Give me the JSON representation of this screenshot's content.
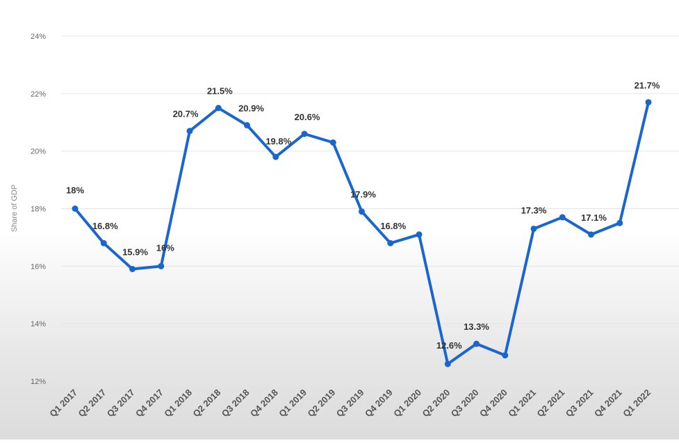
{
  "chart_data": {
    "type": "line",
    "ylabel": "Share of GDP",
    "ylim": [
      12,
      24
    ],
    "yticks": [
      12,
      14,
      16,
      18,
      20,
      22,
      24
    ],
    "ytick_labels": [
      "12%",
      "14%",
      "16%",
      "18%",
      "20%",
      "22%",
      "24%"
    ],
    "grid": true,
    "categories": [
      "Q1 2017",
      "Q2 2017",
      "Q3 2017",
      "Q4 2017",
      "Q1 2018",
      "Q2 2018",
      "Q3 2018",
      "Q4 2018",
      "Q1 2019",
      "Q2 2019",
      "Q3 2019",
      "Q4 2019",
      "Q1 2020",
      "Q2 2020",
      "Q3 2020",
      "Q4 2020",
      "Q1 2021",
      "Q2 2021",
      "Q3 2021",
      "Q4 2021",
      "Q1 2022"
    ],
    "series": [
      {
        "values": [
          18,
          16.8,
          15.9,
          16,
          20.7,
          21.5,
          20.9,
          19.8,
          20.6,
          20.3,
          17.9,
          16.8,
          17.1,
          12.6,
          13.3,
          12.9,
          17.3,
          17.7,
          17.1,
          17.5,
          21.7
        ],
        "data_labels": [
          "18%",
          "16.8%",
          "15.9%",
          "16%",
          "20.7%",
          "21.5%",
          "20.9%",
          "19.8%",
          "20.6%",
          "",
          "17.9%",
          "16.8%",
          "",
          "12.6%",
          "13.3%",
          "",
          "17.3%",
          "",
          "17.1%",
          "",
          "21.7%"
        ],
        "color": "#1a66d0"
      }
    ]
  }
}
